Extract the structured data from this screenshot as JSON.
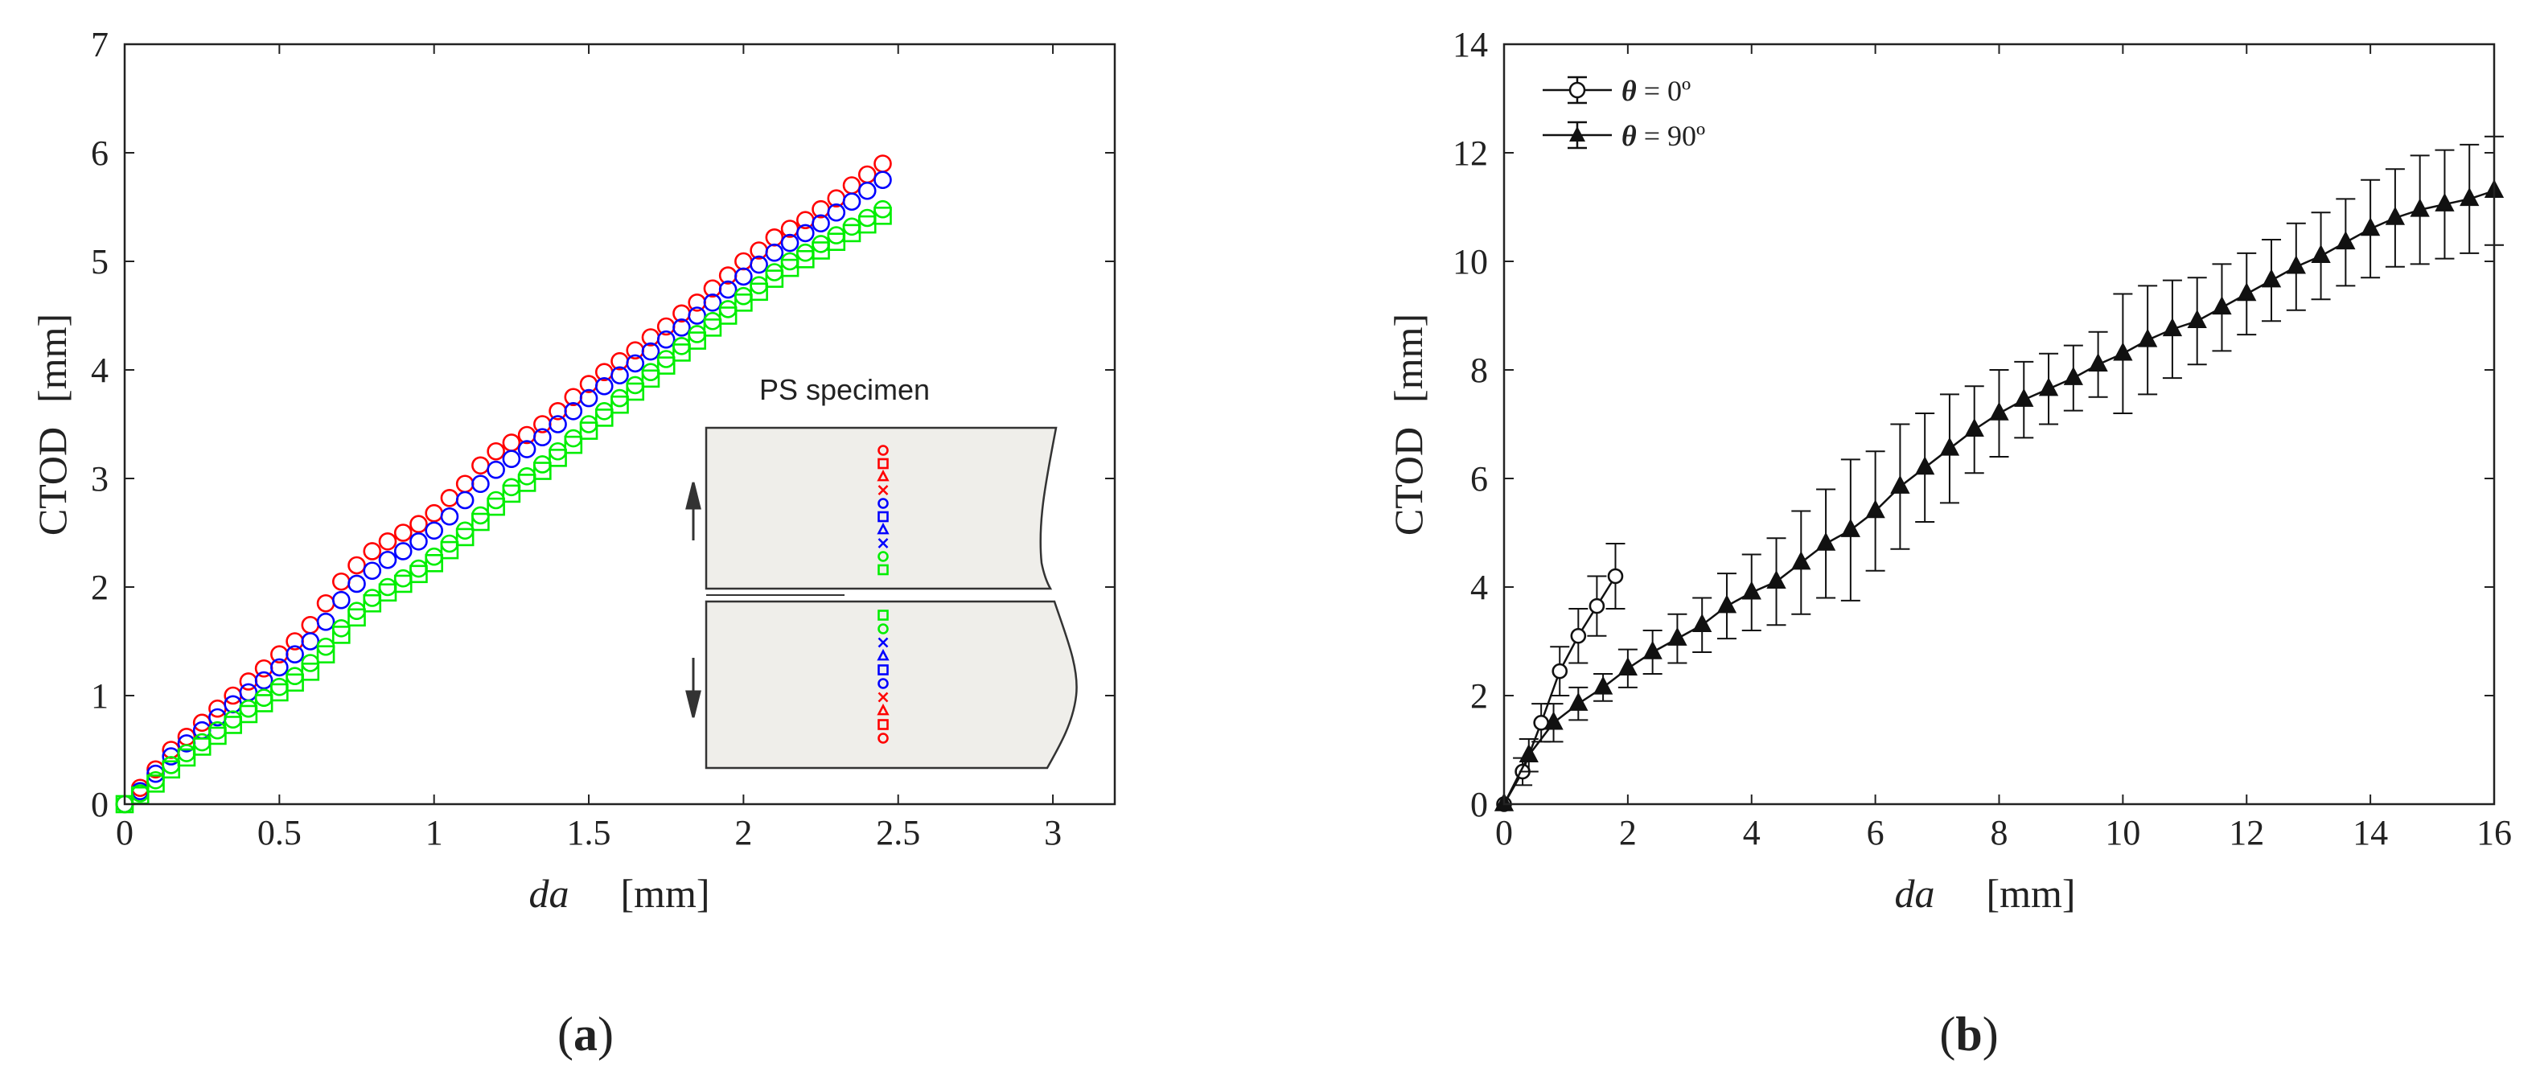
{
  "captions": {
    "a": "a",
    "b": "b"
  },
  "chart_data": [
    {
      "type": "scatter",
      "panel": "a",
      "title": "",
      "xlabel_var": "da",
      "xlabel_unit": "[mm]",
      "ylabel": "CTOD",
      "ylabel_unit": "[mm]",
      "xlim": [
        0,
        3.2
      ],
      "ylim": [
        0,
        7
      ],
      "xticks": [
        "0",
        "0.5",
        "1",
        "1.5",
        "2",
        "2.5",
        "3"
      ],
      "yticks": [
        "0",
        "1",
        "2",
        "3",
        "4",
        "5",
        "6",
        "7"
      ],
      "colors": {
        "red": "#ff0000",
        "blue": "#0000ff",
        "green": "#00ee00"
      },
      "series": [
        {
          "name": "red o",
          "color": "#ff0000",
          "marker": "o",
          "x": [
            0,
            0.05,
            0.1,
            0.15,
            0.2,
            0.25,
            0.3,
            0.35,
            0.4,
            0.45,
            0.5,
            0.55,
            0.6,
            0.65,
            0.7,
            0.75,
            0.8,
            0.85,
            0.9,
            0.95,
            1,
            1.05,
            1.1,
            1.15,
            1.2,
            1.25,
            1.3,
            1.35,
            1.4,
            1.45,
            1.5,
            1.55,
            1.6,
            1.65,
            1.7,
            1.75,
            1.8,
            1.85,
            1.9,
            1.95,
            2,
            2.05,
            2.1,
            2.15,
            2.2,
            2.25,
            2.3,
            2.35,
            2.4,
            2.45
          ],
          "y": [
            0,
            0.15,
            0.32,
            0.5,
            0.62,
            0.75,
            0.88,
            1,
            1.13,
            1.25,
            1.38,
            1.5,
            1.65,
            1.85,
            2.05,
            2.2,
            2.33,
            2.42,
            2.5,
            2.58,
            2.68,
            2.82,
            2.95,
            3.12,
            3.25,
            3.33,
            3.4,
            3.5,
            3.62,
            3.75,
            3.87,
            3.98,
            4.08,
            4.18,
            4.3,
            4.4,
            4.52,
            4.62,
            4.75,
            4.87,
            5,
            5.1,
            5.22,
            5.3,
            5.38,
            5.48,
            5.58,
            5.7,
            5.8,
            5.9
          ]
        },
        {
          "name": "blue o",
          "color": "#0000ff",
          "marker": "o",
          "x": [
            0,
            0.05,
            0.1,
            0.15,
            0.2,
            0.25,
            0.3,
            0.35,
            0.4,
            0.45,
            0.5,
            0.55,
            0.6,
            0.65,
            0.7,
            0.75,
            0.8,
            0.85,
            0.9,
            0.95,
            1,
            1.05,
            1.1,
            1.15,
            1.2,
            1.25,
            1.3,
            1.35,
            1.4,
            1.45,
            1.5,
            1.55,
            1.6,
            1.65,
            1.7,
            1.75,
            1.8,
            1.85,
            1.9,
            1.95,
            2,
            2.05,
            2.1,
            2.15,
            2.2,
            2.25,
            2.3,
            2.35,
            2.4,
            2.45
          ],
          "y": [
            0,
            0.12,
            0.28,
            0.44,
            0.56,
            0.68,
            0.8,
            0.92,
            1.03,
            1.14,
            1.26,
            1.38,
            1.5,
            1.68,
            1.88,
            2.03,
            2.15,
            2.25,
            2.33,
            2.42,
            2.52,
            2.65,
            2.8,
            2.95,
            3.08,
            3.18,
            3.27,
            3.38,
            3.5,
            3.62,
            3.74,
            3.85,
            3.95,
            4.06,
            4.17,
            4.28,
            4.39,
            4.5,
            4.62,
            4.74,
            4.86,
            4.97,
            5.08,
            5.17,
            5.26,
            5.35,
            5.45,
            5.55,
            5.65,
            5.75
          ]
        },
        {
          "name": "green o",
          "color": "#00ee00",
          "marker": "o",
          "x": [
            0,
            0.05,
            0.1,
            0.15,
            0.2,
            0.25,
            0.3,
            0.35,
            0.4,
            0.45,
            0.5,
            0.55,
            0.6,
            0.65,
            0.7,
            0.75,
            0.8,
            0.85,
            0.9,
            0.95,
            1,
            1.05,
            1.1,
            1.15,
            1.2,
            1.25,
            1.3,
            1.35,
            1.4,
            1.45,
            1.5,
            1.55,
            1.6,
            1.65,
            1.7,
            1.75,
            1.8,
            1.85,
            1.9,
            1.95,
            2,
            2.05,
            2.1,
            2.15,
            2.2,
            2.25,
            2.3,
            2.35,
            2.4,
            2.45
          ],
          "y": [
            0,
            0.1,
            0.22,
            0.36,
            0.47,
            0.57,
            0.68,
            0.78,
            0.88,
            0.98,
            1.08,
            1.18,
            1.3,
            1.45,
            1.62,
            1.78,
            1.9,
            2,
            2.08,
            2.17,
            2.28,
            2.4,
            2.52,
            2.66,
            2.8,
            2.92,
            3.02,
            3.13,
            3.25,
            3.37,
            3.5,
            3.62,
            3.74,
            3.86,
            3.98,
            4.1,
            4.22,
            4.33,
            4.45,
            4.56,
            4.68,
            4.78,
            4.9,
            5,
            5.08,
            5.16,
            5.24,
            5.32,
            5.4,
            5.48
          ]
        },
        {
          "name": "green square",
          "color": "#00ee00",
          "marker": "s",
          "x": [
            0,
            0.05,
            0.1,
            0.15,
            0.2,
            0.25,
            0.3,
            0.35,
            0.4,
            0.45,
            0.5,
            0.55,
            0.6,
            0.65,
            0.7,
            0.75,
            0.8,
            0.85,
            0.9,
            0.95,
            1,
            1.05,
            1.1,
            1.15,
            1.2,
            1.25,
            1.3,
            1.35,
            1.4,
            1.45,
            1.5,
            1.55,
            1.6,
            1.65,
            1.7,
            1.75,
            1.8,
            1.85,
            1.9,
            1.95,
            2,
            2.05,
            2.1,
            2.15,
            2.2,
            2.25,
            2.3,
            2.35,
            2.4,
            2.45
          ],
          "y": [
            0,
            0.08,
            0.19,
            0.32,
            0.43,
            0.53,
            0.63,
            0.73,
            0.83,
            0.93,
            1.03,
            1.12,
            1.22,
            1.38,
            1.56,
            1.72,
            1.85,
            1.95,
            2.03,
            2.12,
            2.22,
            2.34,
            2.46,
            2.6,
            2.74,
            2.86,
            2.96,
            3.07,
            3.19,
            3.31,
            3.44,
            3.56,
            3.68,
            3.8,
            3.92,
            4.04,
            4.16,
            4.27,
            4.39,
            4.5,
            4.62,
            4.72,
            4.84,
            4.94,
            5.02,
            5.1,
            5.18,
            5.26,
            5.34,
            5.42
          ]
        }
      ],
      "inset": {
        "title": "PS specimen",
        "legend_top": [
          {
            "marker": "o",
            "color": "#ff0000"
          },
          {
            "marker": "s",
            "color": "#ff0000"
          },
          {
            "marker": "^",
            "color": "#ff0000"
          },
          {
            "marker": "x",
            "color": "#ff0000"
          },
          {
            "marker": "o",
            "color": "#0000ff"
          },
          {
            "marker": "s",
            "color": "#0000ff"
          },
          {
            "marker": "^",
            "color": "#0000ff"
          },
          {
            "marker": "x",
            "color": "#0000ff"
          },
          {
            "marker": "o",
            "color": "#00ee00"
          },
          {
            "marker": "s",
            "color": "#00ee00"
          }
        ],
        "legend_bottom": [
          {
            "marker": "s",
            "color": "#00ee00"
          },
          {
            "marker": "o",
            "color": "#00ee00"
          },
          {
            "marker": "x",
            "color": "#0000ff"
          },
          {
            "marker": "^",
            "color": "#0000ff"
          },
          {
            "marker": "s",
            "color": "#0000ff"
          },
          {
            "marker": "o",
            "color": "#0000ff"
          },
          {
            "marker": "x",
            "color": "#ff0000"
          },
          {
            "marker": "^",
            "color": "#ff0000"
          },
          {
            "marker": "s",
            "color": "#ff0000"
          },
          {
            "marker": "o",
            "color": "#ff0000"
          }
        ]
      }
    },
    {
      "type": "line",
      "panel": "b",
      "title": "",
      "xlabel_var": "da",
      "xlabel_unit": "[mm]",
      "ylabel": "CTOD",
      "ylabel_unit": "[mm]",
      "xlim": [
        0,
        16
      ],
      "ylim": [
        0,
        14
      ],
      "xticks": [
        "0",
        "2",
        "4",
        "6",
        "8",
        "10",
        "12",
        "14",
        "16"
      ],
      "yticks": [
        "0",
        "2",
        "4",
        "6",
        "8",
        "10",
        "12",
        "14"
      ],
      "legend": [
        {
          "symbol": "θ",
          "label": " = 0º",
          "marker": "o"
        },
        {
          "symbol": "θ",
          "label": " = 90º",
          "marker": "^"
        }
      ],
      "series": [
        {
          "name": "θ = 0º",
          "marker": "o",
          "x": [
            0,
            0.3,
            0.6,
            0.9,
            1.2,
            1.5,
            1.8
          ],
          "y": [
            0,
            0.6,
            1.5,
            2.45,
            3.1,
            3.65,
            4.2
          ],
          "err": [
            0,
            0.25,
            0.35,
            0.45,
            0.5,
            0.55,
            0.6
          ]
        },
        {
          "name": "θ = 90º",
          "marker": "^",
          "x": [
            0,
            0.4,
            0.8,
            1.2,
            1.6,
            2,
            2.4,
            2.8,
            3.2,
            3.6,
            4,
            4.4,
            4.8,
            5.2,
            5.6,
            6,
            6.4,
            6.8,
            7.2,
            7.6,
            8,
            8.4,
            8.8,
            9.2,
            9.6,
            10,
            10.4,
            10.8,
            11.2,
            11.6,
            12,
            12.4,
            12.8,
            13.2,
            13.6,
            14,
            14.4,
            14.8,
            15.2,
            15.6,
            16
          ],
          "y": [
            0,
            0.9,
            1.5,
            1.85,
            2.15,
            2.5,
            2.8,
            3.05,
            3.3,
            3.65,
            3.9,
            4.1,
            4.45,
            4.8,
            5.05,
            5.4,
            5.85,
            6.2,
            6.55,
            6.9,
            7.2,
            7.45,
            7.65,
            7.85,
            8.1,
            8.3,
            8.55,
            8.75,
            8.9,
            9.15,
            9.4,
            9.65,
            9.9,
            10.1,
            10.35,
            10.6,
            10.8,
            10.95,
            11.05,
            11.15,
            11.3
          ],
          "err": [
            0,
            0.3,
            0.35,
            0.3,
            0.25,
            0.35,
            0.4,
            0.45,
            0.5,
            0.6,
            0.7,
            0.8,
            0.95,
            1.0,
            1.3,
            1.1,
            1.15,
            1.0,
            1.0,
            0.8,
            0.8,
            0.7,
            0.65,
            0.6,
            0.6,
            1.1,
            1.0,
            0.9,
            0.8,
            0.8,
            0.75,
            0.75,
            0.8,
            0.8,
            0.8,
            0.9,
            0.9,
            1.0,
            1.0,
            1.0,
            1.0
          ]
        }
      ]
    }
  ]
}
